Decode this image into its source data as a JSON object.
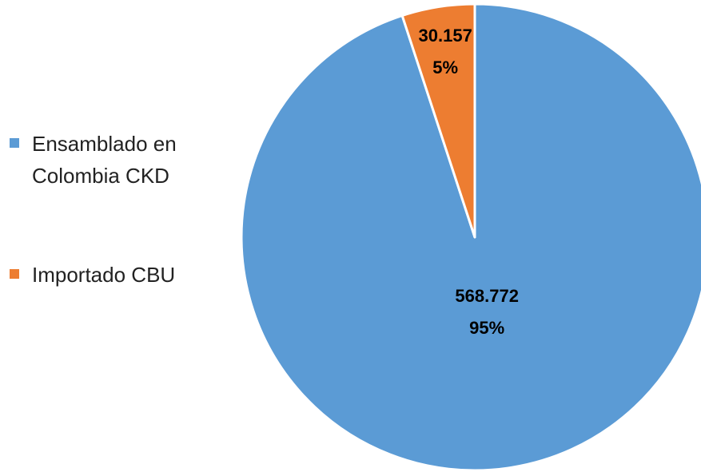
{
  "chart_data": {
    "type": "pie",
    "categories": [
      "Ensamblado en Colombia CKD",
      "Importado CBU"
    ],
    "values": [
      568772,
      30157
    ],
    "value_labels": [
      "568.772",
      "30.157"
    ],
    "percents": [
      95,
      5
    ],
    "percent_labels": [
      "95%",
      "5%"
    ],
    "colors": [
      "#5b9bd5",
      "#ed7d31"
    ],
    "legend": "left"
  }
}
